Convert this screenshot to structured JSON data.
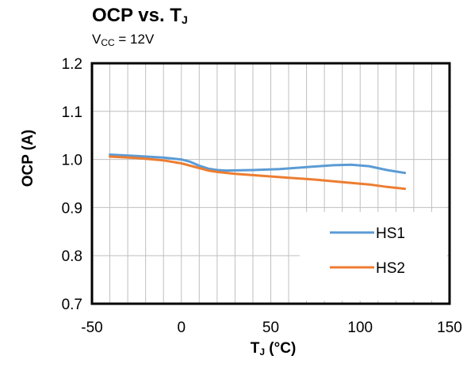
{
  "chart_data": {
    "type": "line",
    "title": "OCP vs. T",
    "title_sub": "J",
    "subtitle_prefix": "V",
    "subtitle_sub": "CC",
    "subtitle_suffix": " = 12V",
    "xlabel": "T",
    "xlabel_sub": "J",
    "xlabel_suffix": " (°C)",
    "ylabel": "OCP (A)",
    "xlim": [
      -50,
      150
    ],
    "ylim": [
      0.7,
      1.2
    ],
    "xticks": [
      -50,
      0,
      50,
      100,
      150
    ],
    "yticks": [
      0.7,
      0.8,
      0.9,
      1.0,
      1.1,
      1.2
    ],
    "ytick_labels": [
      "0.7",
      "0.8",
      "0.9",
      "1.0",
      "1.1",
      "1.2"
    ],
    "grid": true,
    "legend_position": "bottom-right",
    "series": [
      {
        "name": "HS1",
        "color": "#5b9bd5",
        "x": [
          -40,
          -25,
          -10,
          0,
          5,
          10,
          15,
          20,
          25,
          40,
          55,
          70,
          85,
          95,
          105,
          115,
          125
        ],
        "y": [
          1.01,
          1.007,
          1.004,
          1.0,
          0.995,
          0.987,
          0.981,
          0.978,
          0.977,
          0.978,
          0.98,
          0.984,
          0.988,
          0.989,
          0.986,
          0.978,
          0.972
        ]
      },
      {
        "name": "HS2",
        "color": "#ed7d31",
        "x": [
          -40,
          -25,
          -10,
          0,
          5,
          10,
          15,
          20,
          30,
          45,
          60,
          75,
          90,
          105,
          115,
          125
        ],
        "y": [
          1.006,
          1.003,
          0.998,
          0.992,
          0.987,
          0.982,
          0.977,
          0.974,
          0.97,
          0.966,
          0.962,
          0.958,
          0.953,
          0.948,
          0.943,
          0.939
        ]
      }
    ]
  }
}
